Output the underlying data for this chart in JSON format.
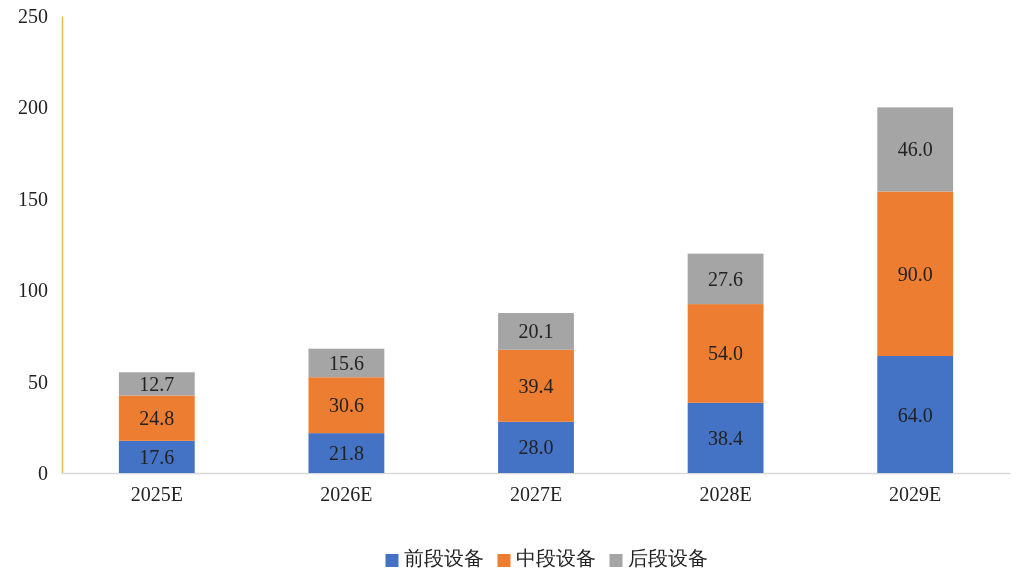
{
  "chart_data": {
    "type": "bar",
    "stacked": true,
    "categories": [
      "2025E",
      "2026E",
      "2027E",
      "2028E",
      "2029E"
    ],
    "series": [
      {
        "name": "前段设备",
        "color": "#4472c4",
        "values": [
          17.6,
          21.8,
          28.0,
          38.4,
          64.0
        ],
        "value_labels": [
          "17.6",
          "21.8",
          "28.0",
          "38.4",
          "64.0"
        ]
      },
      {
        "name": "中段设备",
        "color": "#ed7d31",
        "values": [
          24.8,
          30.6,
          39.4,
          54.0,
          90.0
        ],
        "value_labels": [
          "24.8",
          "30.6",
          "39.4",
          "54.0",
          "90.0"
        ]
      },
      {
        "name": "后段设备",
        "color": "#a5a5a5",
        "values": [
          12.7,
          15.6,
          20.1,
          27.6,
          46.0
        ],
        "value_labels": [
          "12.7",
          "15.6",
          "20.1",
          "27.6",
          "46.0"
        ]
      }
    ],
    "ylim": [
      0,
      250
    ],
    "yticks": [
      0,
      50,
      100,
      150,
      200,
      250
    ],
    "grid": false,
    "legend": "bottom"
  }
}
